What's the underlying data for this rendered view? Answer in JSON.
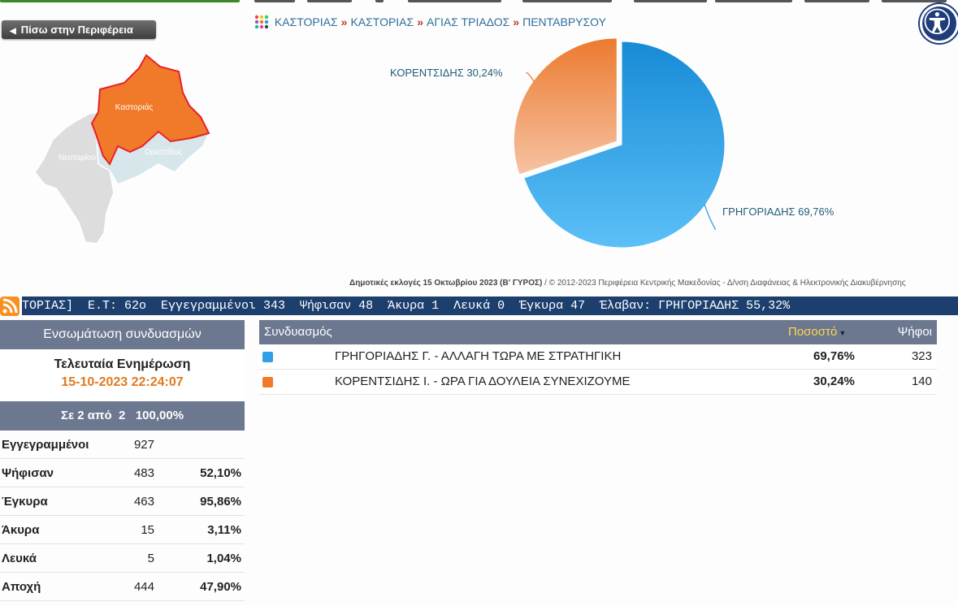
{
  "back_button": {
    "label": "Πίσω στην Περιφέρεια"
  },
  "map": {
    "regions": [
      {
        "name": "Καστοριάς",
        "color": "#f07a2a"
      },
      {
        "name": "Νεστορίου",
        "color": "#dddddd"
      },
      {
        "name": "Ορεστίδος",
        "color": "#d6e6ea"
      }
    ]
  },
  "breadcrumb": [
    "ΚΑΣΤΟΡΙΑΣ",
    "ΚΑΣΤΟΡΙΑΣ",
    "ΑΓΙΑΣ ΤΡΙΑΔΟΣ",
    "ΠΕΝΤΑΒΡΥΣΟΥ"
  ],
  "breadcrumb_separator": "»",
  "accessibility": {
    "icon": "accessibility-icon"
  },
  "chart_data": {
    "type": "pie",
    "slices": [
      {
        "label": "ΓΡΗΓΟΡΙΑΔΗΣ 69,76%",
        "value": 69.76,
        "color": "#2f9fe6"
      },
      {
        "label": "ΚΟΡΕΝΤΣΙΔΗΣ 30,24%",
        "value": 30.24,
        "color": "#f07a2a"
      }
    ]
  },
  "footer": {
    "bold": "Δημοτικές εκλογές 15 Οκτωβρίου 2023 (Β' ΓΥΡΟΣ)",
    "rest": " / © 2012-2023 Περιφέρεια Κεντρικής Μακεδονίας - Δ/νση Διαφάνειας & Ηλεκτρονικής Διακυβέρνησης"
  },
  "ticker": {
    "text": "ΤΟΡΙΑΣ]  Ε.Τ: 62ο  Εγγεγραμμένοι 343  Ψήφισαν 48  Άκυρα 1  Λευκά 0  Έγκυρα 47  Έλαβαν: ΓΡΗΓΟΡΙΑΔΗΣ 55,32%"
  },
  "left_panel": {
    "header": "Ενσωμάτωση συνδυασμών",
    "update_title": "Τελευταία Ενημέρωση",
    "update_time": "15-10-2023 22:24:07",
    "counted": "Σε 2 από  2   100,00%",
    "stats": [
      {
        "label": "Εγγεγραμμένοι",
        "value": "927",
        "pct": ""
      },
      {
        "label": "Ψήφισαν",
        "value": "483",
        "pct": "52,10%"
      },
      {
        "label": "Έγκυρα",
        "value": "463",
        "pct": "95,86%"
      },
      {
        "label": "Άκυρα",
        "value": "15",
        "pct": "3,11%"
      },
      {
        "label": "Λευκά",
        "value": "5",
        "pct": "1,04%"
      },
      {
        "label": "Αποχή",
        "value": "444",
        "pct": "47,90%"
      }
    ]
  },
  "results": {
    "headers": {
      "combination": "Συνδυασμός",
      "percent": "Ποσοστό",
      "votes": "Ψήφοι"
    },
    "rows": [
      {
        "color": "#2f9fe6",
        "name": "ΓΡΗΓΟΡΙΑΔΗΣ Γ. - ΑΛΛΑΓΗ ΤΩΡΑ ΜΕ ΣΤΡΑΤΗΓΙΚΗ",
        "percent": "69,76%",
        "votes": "323"
      },
      {
        "color": "#f07a2a",
        "name": "ΚΟΡΕΝΤΣΙΔΗΣ Ι. - ΩΡΑ ΓΙΑ ΔΟΥΛΕΙΑ ΣΥΝΕΧΙΖΟΥΜΕ",
        "percent": "30,24%",
        "votes": "140"
      }
    ]
  }
}
